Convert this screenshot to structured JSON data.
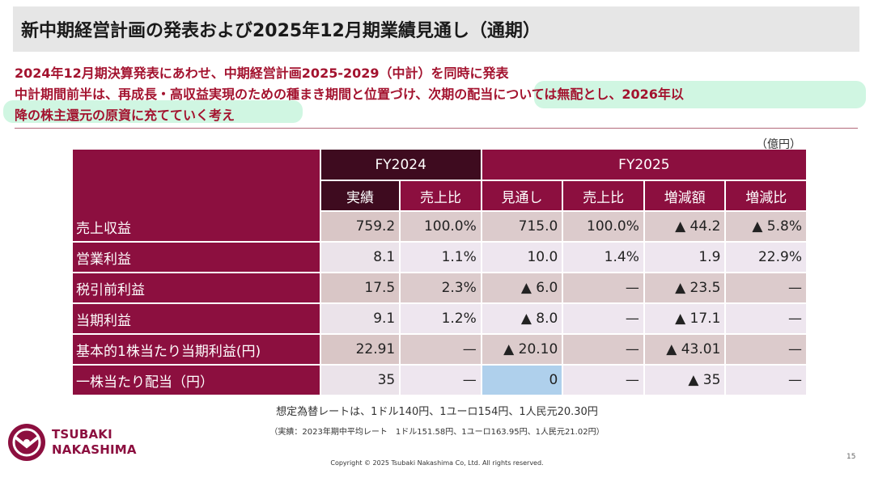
{
  "header": {
    "title": "新中期経営計画の発表および2025年12月期業績見通し（通期）"
  },
  "intro": {
    "line1": "2024年12月期決算発表にあわせ、中期経営計画2025-2029（中計）を同時に発表",
    "line2": "中計期間前半は、再成長・高収益実現のための種まき期間と位置づけ、次期の配当については無配とし、2026年以",
    "line3": "降の株主還元の原資に充てていく考え"
  },
  "table": {
    "unit": "（億円）",
    "groups": {
      "fy2024": "FY2024",
      "fy2025": "FY2025"
    },
    "columns": [
      "実績",
      "売上比",
      "見通し",
      "売上比",
      "増減額",
      "増減比"
    ],
    "rows": [
      {
        "label": "売上収益",
        "values": [
          "759.2",
          "100.0%",
          "715.0",
          "100.0%",
          "▲ 44.2",
          "▲ 5.8%"
        ]
      },
      {
        "label": "営業利益",
        "values": [
          "8.1",
          "1.1%",
          "10.0",
          "1.4%",
          "1.9",
          "22.9%"
        ]
      },
      {
        "label": "税引前利益",
        "values": [
          "17.5",
          "2.3%",
          "▲ 6.0",
          "—",
          "▲ 23.5",
          "—"
        ]
      },
      {
        "label": "当期利益",
        "values": [
          "9.1",
          "1.2%",
          "▲ 8.0",
          "—",
          "▲ 17.1",
          "—"
        ]
      },
      {
        "label": "基本的1株当たり当期利益(円)",
        "values": [
          "22.91",
          "—",
          "▲ 20.10",
          "—",
          "▲ 43.01",
          "—"
        ]
      },
      {
        "label": "一株当たり配当（円）",
        "values": [
          "35",
          "—",
          "0",
          "—",
          "▲ 35",
          "—"
        ]
      }
    ]
  },
  "notes": {
    "fx_assumption": "想定為替レートは、1ドル140円、1ユーロ154円、1人民元20.30円",
    "fx_actual": "（実績：2023年期中平均レート　1ドル151.58円、1ユーロ163.95円、1人民元21.02円）"
  },
  "footer": {
    "copyright": "Copyright © 2025 Tsubaki Nakashima Co, Ltd. All rights reserved.",
    "page_number": "15",
    "logo_line1": "TSUBAKI",
    "logo_line2": "NAKASHIMA"
  },
  "colors": {
    "brand": "#8c0f3f",
    "accent_text": "#a3122e"
  }
}
